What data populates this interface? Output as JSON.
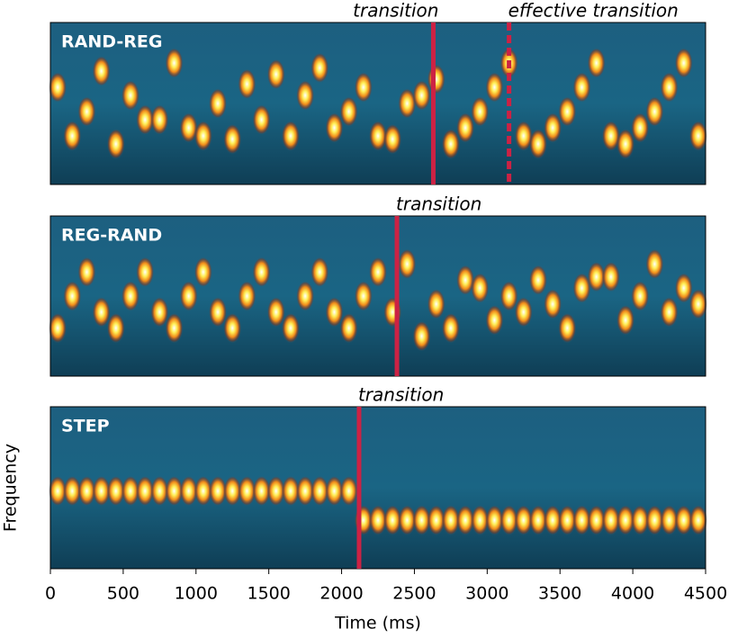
{
  "chart_data": [
    {
      "type": "spectrogram",
      "title": "RAND-REG",
      "x": [
        0,
        100,
        200,
        300,
        400,
        500,
        600,
        700,
        800,
        900,
        1000,
        1100,
        1200,
        1300,
        1400,
        1500,
        1600,
        1700,
        1800,
        1900,
        2000,
        2100,
        2200,
        2300,
        2400,
        2500,
        2600,
        2700,
        2800,
        2900,
        3000,
        3100,
        3200,
        3300,
        3400,
        3500,
        3600,
        3700,
        3800,
        3900,
        4000,
        4100,
        4200,
        4300,
        4400
      ],
      "values": [
        0.6,
        0.3,
        0.45,
        0.7,
        0.25,
        0.55,
        0.4,
        0.4,
        0.75,
        0.35,
        0.3,
        0.5,
        0.28,
        0.62,
        0.4,
        0.68,
        0.3,
        0.55,
        0.72,
        0.35,
        0.45,
        0.6,
        0.3,
        0.28,
        0.5,
        0.55,
        0.65,
        0.25,
        0.35,
        0.45,
        0.6,
        0.75,
        0.3,
        0.25,
        0.35,
        0.45,
        0.6,
        0.75,
        0.3,
        0.25,
        0.35,
        0.45,
        0.6,
        0.75,
        0.3
      ],
      "xlim": [
        0,
        4500
      ],
      "ylim": [
        0,
        1
      ],
      "annotations": [
        {
          "text": "transition",
          "x": 2630,
          "style": "solid"
        },
        {
          "text": "effective transition",
          "x": 3150,
          "style": "dashed"
        }
      ]
    },
    {
      "type": "spectrogram",
      "title": "REG-RAND",
      "x": [
        0,
        100,
        200,
        300,
        400,
        500,
        600,
        700,
        800,
        900,
        1000,
        1100,
        1200,
        1300,
        1400,
        1500,
        1600,
        1700,
        1800,
        1900,
        2000,
        2100,
        2200,
        2300,
        2400,
        2500,
        2600,
        2700,
        2800,
        2900,
        3000,
        3100,
        3200,
        3300,
        3400,
        3500,
        3600,
        3700,
        3800,
        3900,
        4000,
        4100,
        4200,
        4300,
        4400
      ],
      "values": [
        0.3,
        0.5,
        0.65,
        0.4,
        0.3,
        0.5,
        0.65,
        0.4,
        0.3,
        0.5,
        0.65,
        0.4,
        0.3,
        0.5,
        0.65,
        0.4,
        0.3,
        0.5,
        0.65,
        0.4,
        0.3,
        0.5,
        0.65,
        0.4,
        0.7,
        0.25,
        0.45,
        0.3,
        0.6,
        0.55,
        0.35,
        0.5,
        0.4,
        0.6,
        0.45,
        0.3,
        0.55,
        0.62,
        0.62,
        0.35,
        0.5,
        0.7,
        0.4,
        0.55,
        0.45
      ],
      "xlim": [
        0,
        4500
      ],
      "ylim": [
        0,
        1
      ],
      "annotations": [
        {
          "text": "transition",
          "x": 2380,
          "style": "solid"
        }
      ]
    },
    {
      "type": "spectrogram",
      "title": "STEP",
      "x": [
        0,
        100,
        200,
        300,
        400,
        500,
        600,
        700,
        800,
        900,
        1000,
        1100,
        1200,
        1300,
        1400,
        1500,
        1600,
        1700,
        1800,
        1900,
        2000,
        2100,
        2200,
        2300,
        2400,
        2500,
        2600,
        2700,
        2800,
        2900,
        3000,
        3100,
        3200,
        3300,
        3400,
        3500,
        3600,
        3700,
        3800,
        3900,
        4000,
        4100,
        4200,
        4300,
        4400
      ],
      "values": [
        0.48,
        0.48,
        0.48,
        0.48,
        0.48,
        0.48,
        0.48,
        0.48,
        0.48,
        0.48,
        0.48,
        0.48,
        0.48,
        0.48,
        0.48,
        0.48,
        0.48,
        0.48,
        0.48,
        0.48,
        0.48,
        0.3,
        0.3,
        0.3,
        0.3,
        0.3,
        0.3,
        0.3,
        0.3,
        0.3,
        0.3,
        0.3,
        0.3,
        0.3,
        0.3,
        0.3,
        0.3,
        0.3,
        0.3,
        0.3,
        0.3,
        0.3,
        0.3,
        0.3,
        0.3
      ],
      "xlim": [
        0,
        4500
      ],
      "ylim": [
        0,
        1
      ],
      "xticks": [
        0,
        500,
        1000,
        1500,
        2000,
        2500,
        3000,
        3500,
        4000,
        4500
      ],
      "xlabel": "Time (ms)",
      "ylabel": "Frequency",
      "annotations": [
        {
          "text": "transition",
          "x": 2120,
          "style": "solid"
        }
      ]
    }
  ]
}
